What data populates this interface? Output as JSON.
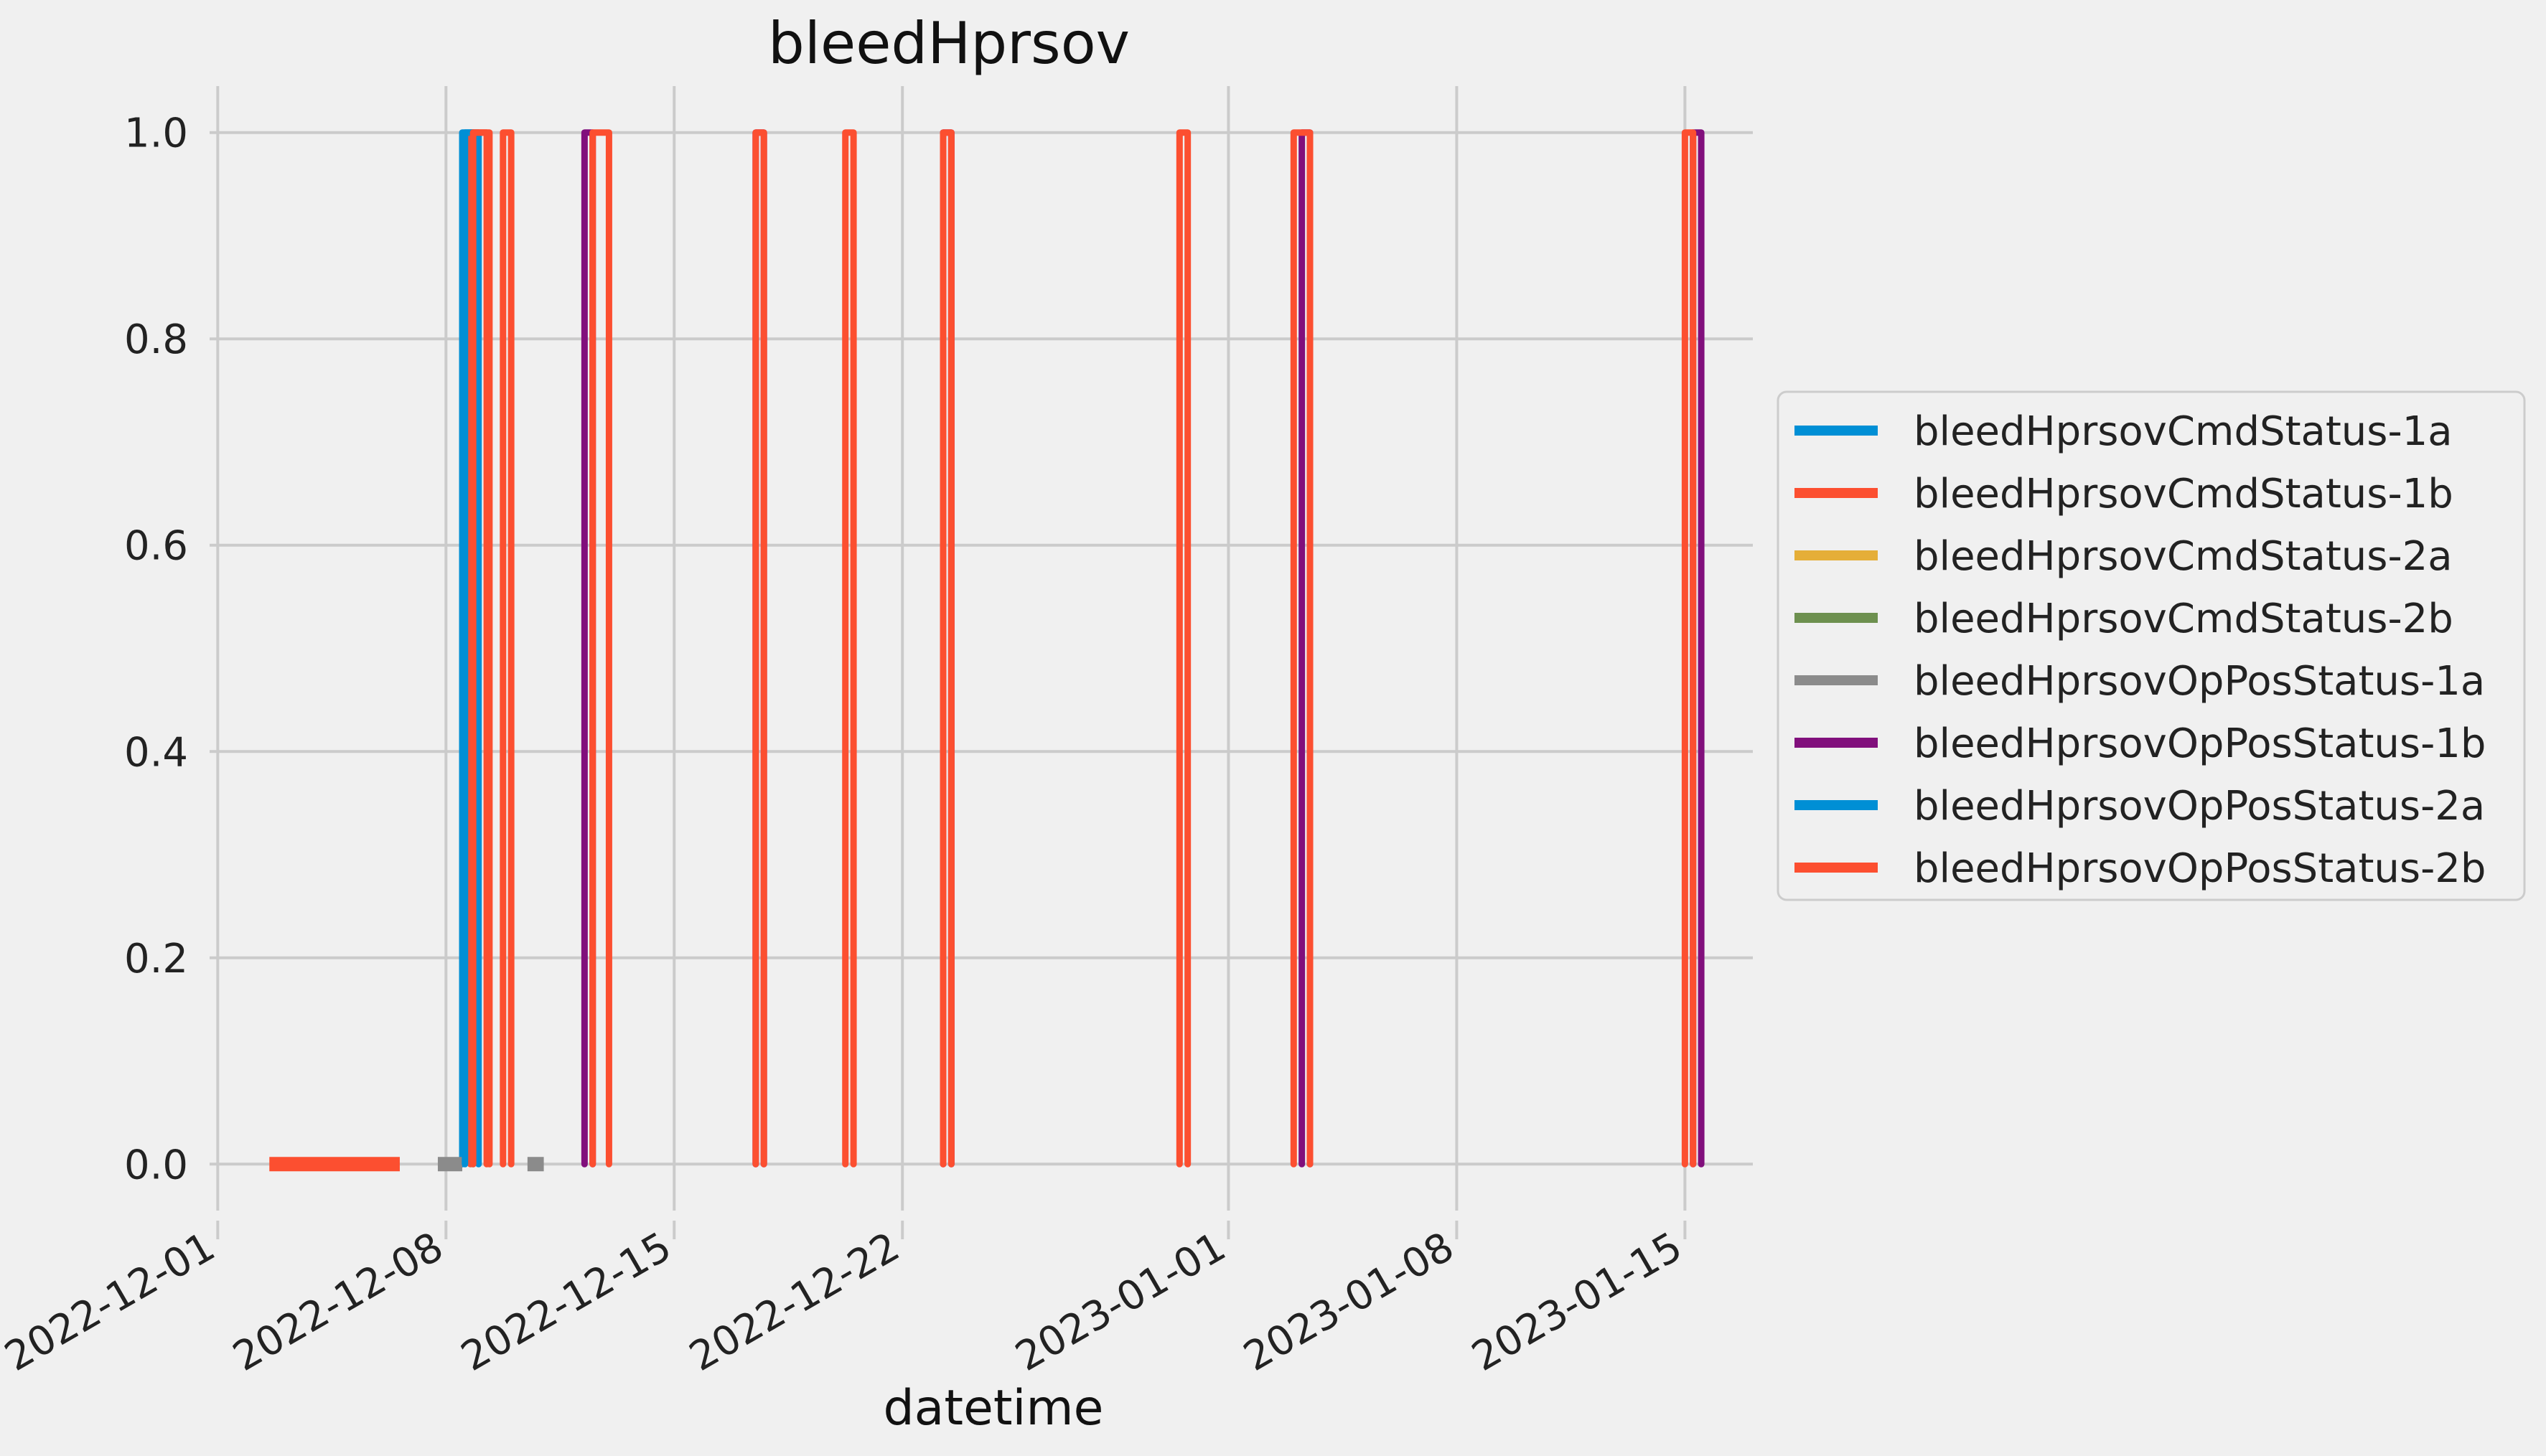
{
  "chart_data": {
    "type": "line",
    "title": "bleedHprsov",
    "xlabel": "datetime",
    "ylabel": "",
    "x_ticks": [
      "2022-12-01",
      "2022-12-08",
      "2022-12-15",
      "2022-12-22",
      "2023-01-01",
      "2023-01-08",
      "2023-01-15"
    ],
    "y_ticks": [
      "0.0",
      "0.2",
      "0.4",
      "0.6",
      "0.8",
      "1.0"
    ],
    "xlim": [
      "2022-11-30T18:00",
      "2023-01-17T02:00"
    ],
    "ylim": [
      -0.045,
      1.045
    ],
    "grid": true,
    "legend_position": "center-right",
    "series": [
      {
        "name": "bleedHprsovCmdStatus-1a",
        "color": "#008fd5",
        "pulses": [
          [
            "2022-12-08T12:00",
            "2022-12-09T00:00"
          ]
        ],
        "flat": []
      },
      {
        "name": "bleedHprsovCmdStatus-1b",
        "color": "#fc4f30",
        "pulses": [
          [
            "2022-12-08T18:00",
            "2022-12-09T06:00"
          ]
        ],
        "flat": []
      },
      {
        "name": "bleedHprsovCmdStatus-2a",
        "color": "#e5ae38",
        "pulses": [],
        "flat": []
      },
      {
        "name": "bleedHprsovCmdStatus-2b",
        "color": "#6d904f",
        "pulses": [],
        "flat": []
      },
      {
        "name": "bleedHprsovOpPosStatus-1a",
        "color": "#8b8b8b",
        "pulses": [],
        "flat": [
          [
            "2022-12-07T18:00",
            "2022-12-08T12:00"
          ],
          [
            "2022-12-10T12:00",
            "2022-12-11T00:00"
          ]
        ]
      },
      {
        "name": "bleedHprsovOpPosStatus-1b",
        "color": "#810f7c",
        "pulses": [
          [
            "2022-12-12T06:00",
            "2022-12-12T12:00"
          ],
          [
            "2022-12-17T12:00",
            "2022-12-17T18:00"
          ],
          [
            "2022-12-23T06:00",
            "2022-12-23T12:00"
          ],
          [
            "2023-01-03T06:00",
            "2023-01-03T12:00"
          ],
          [
            "2023-01-15T06:00",
            "2023-01-15T12:00"
          ]
        ],
        "flat": []
      },
      {
        "name": "bleedHprsovOpPosStatus-2a",
        "color": "#008fd5",
        "pulses": [
          [
            "2022-12-08T14:00",
            "2022-12-08T20:00"
          ]
        ],
        "flat": []
      },
      {
        "name": "bleedHprsovOpPosStatus-2b",
        "color": "#fc4f30",
        "pulses": [
          [
            "2022-12-08T20:00",
            "2022-12-09T08:00"
          ],
          [
            "2022-12-09T18:00",
            "2022-12-10T00:00"
          ],
          [
            "2022-12-12T12:00",
            "2022-12-13T00:00"
          ],
          [
            "2022-12-17T12:00",
            "2022-12-17T18:00"
          ],
          [
            "2022-12-20T06:00",
            "2022-12-20T12:00"
          ],
          [
            "2022-12-23T06:00",
            "2022-12-23T12:00"
          ],
          [
            "2022-12-30T12:00",
            "2022-12-30T18:00"
          ],
          [
            "2023-01-03T00:00",
            "2023-01-03T12:00"
          ],
          [
            "2023-01-15T00:00",
            "2023-01-15T06:00"
          ]
        ],
        "flat": [
          [
            "2022-12-02T14:00",
            "2022-12-06T14:00"
          ]
        ]
      }
    ]
  }
}
